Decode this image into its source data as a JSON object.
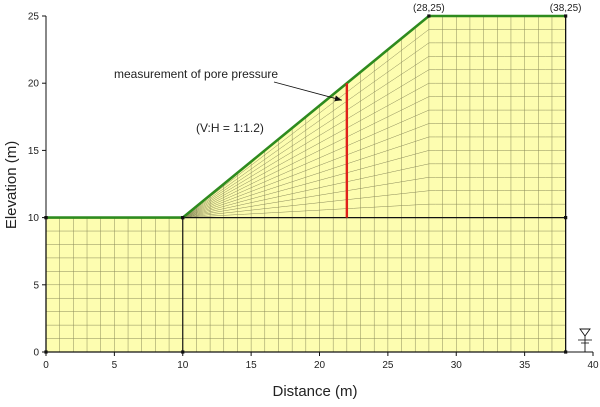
{
  "chart_data": {
    "type": "diagram",
    "xlabel": "Distance (m)",
    "ylabel": "Elevation (m)",
    "xlim": [
      0,
      40
    ],
    "ylim": [
      0,
      25
    ],
    "x_ticks": [
      "0",
      "5",
      "10",
      "15",
      "20",
      "25",
      "30",
      "35",
      "40"
    ],
    "y_ticks": [
      "0",
      "5",
      "10",
      "15",
      "20",
      "25"
    ],
    "slope_profile": [
      [
        0,
        10
      ],
      [
        10,
        10
      ],
      [
        28,
        25
      ],
      [
        38,
        25
      ]
    ],
    "model_bottom": 0,
    "model_right": 38,
    "foundation_top": 10,
    "point_labels": [
      {
        "text": "(28,25)",
        "x": 28,
        "y": 25
      },
      {
        "text": "(38,25)",
        "x": 38,
        "y": 25
      }
    ],
    "measurement_line": {
      "x": 22,
      "y_from": 10,
      "y_to": 20,
      "color": "#e0201a"
    },
    "annotations": {
      "measurement": "measurement of pore pressure",
      "slope_ratio": "(V:H = 1:1.2)"
    },
    "water_table_elevation": 0,
    "colors": {
      "soil_fill": "#fdfdb0",
      "mesh": "#8a8a5a",
      "slope_surface": "#2e8b1e",
      "measurement": "#e0201a"
    }
  }
}
